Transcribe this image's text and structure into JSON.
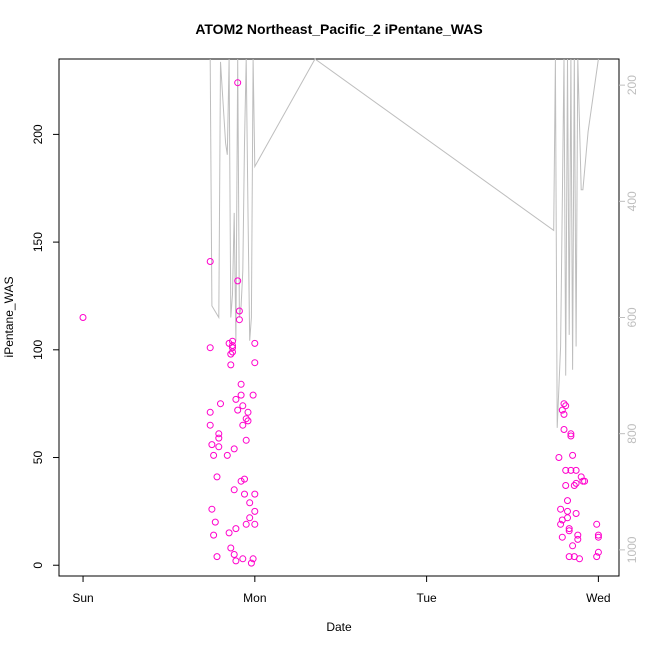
{
  "chart_data": {
    "type": "scatter",
    "title": "ATOM2 Northeast_Pacific_2 iPentane_WAS",
    "xlabel": "Date",
    "ylabel": "iPentane_WAS",
    "x_ticks": [
      "Sun",
      "Mon",
      "Tue",
      "Wed"
    ],
    "xlim_days": [
      -0.14,
      3.12
    ],
    "ylim": [
      -5,
      235
    ],
    "y_ticks": [
      0,
      50,
      100,
      150,
      200
    ],
    "secondary_axis": {
      "ticks": [
        200,
        400,
        600,
        800,
        1000
      ],
      "lim_top": 155,
      "lim_bottom": 1045,
      "color": "#bebebe"
    },
    "series": [
      {
        "type": "scatter",
        "color": "#ff00cc",
        "x_days": [
          0.0,
          0.74,
          0.74,
          0.74,
          0.74,
          0.75,
          0.75,
          0.76,
          0.76,
          0.77,
          0.78,
          0.78,
          0.79,
          0.79,
          0.79,
          0.8,
          0.84,
          0.85,
          0.85,
          0.86,
          0.86,
          0.86,
          0.87,
          0.87,
          0.87,
          0.87,
          0.88,
          0.88,
          0.88,
          0.89,
          0.89,
          0.89,
          0.9,
          0.9,
          0.9,
          0.91,
          0.91,
          0.92,
          0.92,
          0.92,
          0.93,
          0.93,
          0.93,
          0.94,
          0.94,
          0.95,
          0.95,
          0.95,
          0.96,
          0.96,
          0.97,
          0.97,
          0.98,
          0.99,
          0.99,
          1.0,
          1.0,
          1.0,
          1.0,
          1.0,
          2.77,
          2.78,
          2.78,
          2.79,
          2.79,
          2.79,
          2.8,
          2.8,
          2.8,
          2.81,
          2.81,
          2.81,
          2.82,
          2.82,
          2.82,
          2.83,
          2.83,
          2.83,
          2.84,
          2.84,
          2.84,
          2.85,
          2.85,
          2.86,
          2.86,
          2.87,
          2.87,
          2.87,
          2.88,
          2.88,
          2.89,
          2.9,
          2.91,
          2.92,
          2.99,
          2.99,
          3.0,
          3.0,
          3.0
        ],
        "y": [
          115,
          141,
          101,
          71,
          65,
          56,
          26,
          14,
          51,
          20,
          4,
          41,
          59,
          55,
          61,
          75,
          51,
          15,
          103,
          8,
          98,
          93,
          102,
          104,
          99,
          101,
          54,
          35,
          5,
          17,
          77,
          2,
          132,
          224,
          72,
          118,
          114,
          39,
          79,
          84,
          74,
          3,
          65,
          33,
          40,
          19,
          58,
          68,
          67,
          71,
          22,
          29,
          1,
          79,
          3,
          33,
          25,
          19,
          103,
          94,
          50,
          26,
          19,
          13,
          21,
          72,
          75,
          70,
          63,
          74,
          44,
          37,
          25,
          30,
          22,
          4,
          16,
          17,
          44,
          60,
          61,
          51,
          9,
          4,
          37,
          24,
          44,
          38,
          14,
          12,
          3,
          41,
          39,
          39,
          19,
          4,
          6,
          14,
          13
        ]
      },
      {
        "type": "line",
        "color": "#bebebe",
        "axis": "secondary",
        "x_days": [
          0.74,
          0.75,
          0.79,
          0.8,
          0.83,
          0.84,
          0.85,
          0.86,
          0.87,
          0.88,
          0.89,
          0.9,
          0.91,
          0.92,
          0.93,
          0.94,
          0.95,
          0.96,
          0.97,
          0.98,
          0.99,
          1.0,
          1.35,
          2.74,
          2.75,
          2.76,
          2.78,
          2.8,
          2.81,
          2.82,
          2.83,
          2.84,
          2.85,
          2.86,
          2.87,
          2.88,
          2.9,
          2.91,
          2.94,
          3.0
        ],
        "y": [
          155,
          580,
          600,
          160,
          300,
          320,
          155,
          600,
          560,
          420,
          640,
          155,
          600,
          580,
          520,
          300,
          155,
          420,
          640,
          600,
          155,
          340,
          155,
          450,
          155,
          790,
          650,
          155,
          700,
          155,
          630,
          155,
          690,
          155,
          650,
          155,
          380,
          380,
          280,
          155
        ]
      }
    ]
  }
}
